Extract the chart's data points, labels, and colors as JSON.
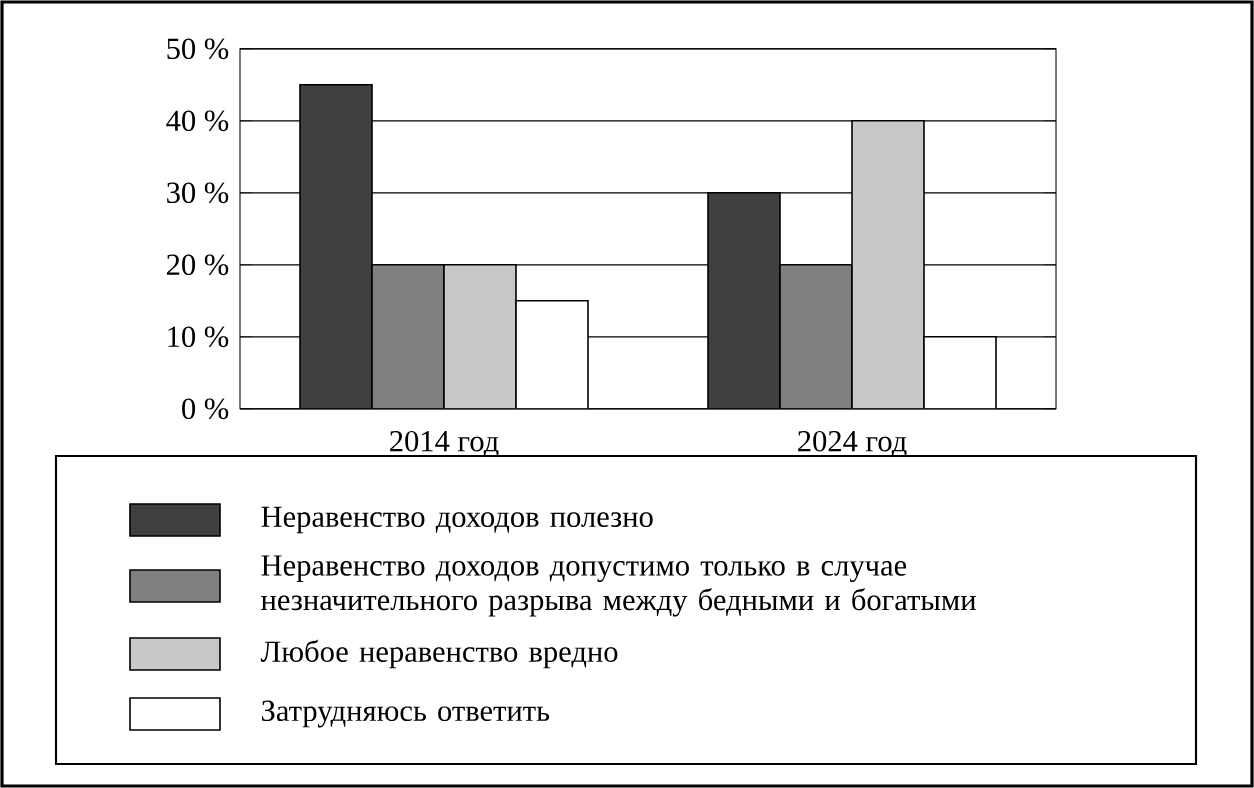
{
  "chart_data": {
    "type": "bar",
    "categories": [
      "2014 год",
      "2024 год"
    ],
    "series": [
      {
        "name": "Неравенство доходов полезно",
        "color": "#404040",
        "values": [
          45,
          30
        ]
      },
      {
        "name": "Неравенство доходов допустимо только в случае незначительного разрыва между бедными и богатыми",
        "color": "#808080",
        "values": [
          20,
          20
        ]
      },
      {
        "name": "Любое неравенство вредно",
        "color": "#c8c8c8",
        "values": [
          20,
          40
        ]
      },
      {
        "name": "Затрудняюсь ответить",
        "color": "#ffffff",
        "values": [
          15,
          10
        ]
      }
    ],
    "ylim": [
      0,
      50
    ],
    "yticks": [
      {
        "value": 0,
        "label": "0 %"
      },
      {
        "value": 10,
        "label": "10 %"
      },
      {
        "value": 20,
        "label": "20 %"
      },
      {
        "value": 30,
        "label": "30 %"
      },
      {
        "value": 40,
        "label": "40 %"
      },
      {
        "value": 50,
        "label": "50 %"
      }
    ],
    "grid": "y",
    "legend": "bottom"
  }
}
